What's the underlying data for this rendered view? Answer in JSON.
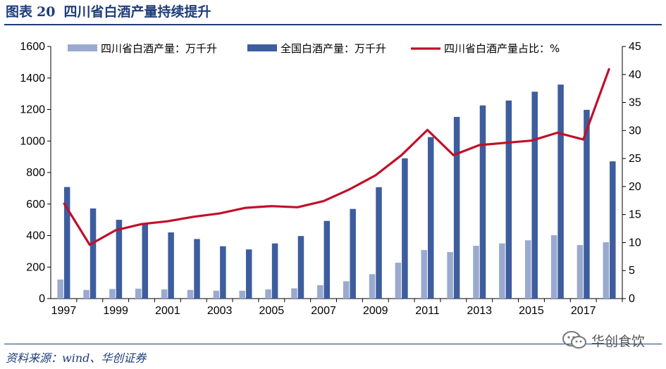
{
  "header": {
    "prefix": "图表",
    "number": "20",
    "title": "四川省白酒产量持续提升"
  },
  "source": "资料来源：wind、华创证券",
  "watermark": "华创食饮",
  "colors": {
    "sichuan_bar": "#9aa9d0",
    "national_bar": "#3d5d9e",
    "share_line": "#c0102a",
    "brand": "#1f3d7a"
  },
  "chart_data": {
    "type": "bar",
    "title": "",
    "x": [
      1997,
      1998,
      1999,
      2000,
      2001,
      2002,
      2003,
      2004,
      2005,
      2006,
      2007,
      2008,
      2009,
      2010,
      2011,
      2012,
      2013,
      2014,
      2015,
      2016,
      2017,
      2018
    ],
    "x_tick_labels": [
      "1997",
      "1999",
      "2001",
      "2003",
      "2005",
      "2007",
      "2009",
      "2011",
      "2013",
      "2015",
      "2017"
    ],
    "y_left": {
      "ylim": [
        0,
        1600
      ],
      "ticks": [
        "0",
        "200",
        "400",
        "600",
        "800",
        "1000",
        "1200",
        "1400",
        "1600"
      ]
    },
    "y_right": {
      "ylim": [
        0,
        45
      ],
      "ticks": [
        "0",
        "5",
        "10",
        "15",
        "20",
        "25",
        "30",
        "35",
        "40",
        "45"
      ]
    },
    "legend_position": "top",
    "grid": false,
    "series": [
      {
        "name": "四川省白酒产量：万千升",
        "type": "bar",
        "axis": "left",
        "values": [
          121,
          55,
          61,
          63,
          58,
          55,
          50,
          50,
          58,
          65,
          85,
          110,
          155,
          228,
          308,
          295,
          335,
          350,
          370,
          402,
          340,
          358
        ]
      },
      {
        "name": "全国白酒产量：万千升",
        "type": "bar",
        "axis": "left",
        "values": [
          708,
          572,
          500,
          476,
          420,
          378,
          332,
          312,
          350,
          397,
          493,
          569,
          707,
          890,
          1025,
          1153,
          1226,
          1257,
          1313,
          1358,
          1198,
          871
        ]
      },
      {
        "name": "四川省白酒产量占比：%",
        "type": "line",
        "axis": "right",
        "values": [
          17.1,
          9.6,
          12.2,
          13.3,
          13.8,
          14.6,
          15.2,
          16.2,
          16.5,
          16.3,
          17.4,
          19.5,
          22.0,
          25.6,
          30.1,
          25.6,
          27.4,
          27.8,
          28.2,
          29.6,
          28.4,
          41.1
        ]
      }
    ]
  }
}
